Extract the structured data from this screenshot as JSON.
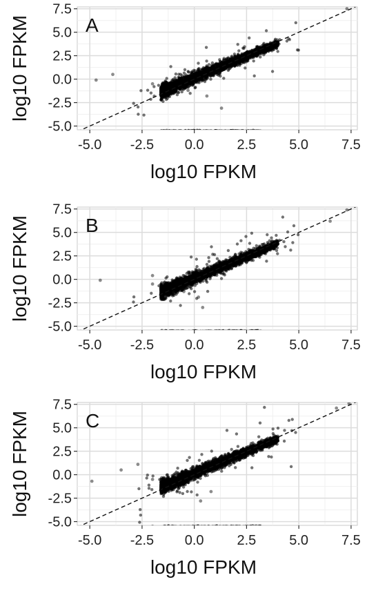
{
  "chart_data": [
    {
      "type": "scatter",
      "panel_label": "A",
      "xlabel": "log10 FPKM",
      "ylabel": "log10 FPKM",
      "xlim": [
        -5.6,
        7.8
      ],
      "ylim": [
        -5.4,
        7.7
      ],
      "x_ticks": [
        -5.0,
        -2.5,
        0.0,
        2.5,
        5.0,
        7.5
      ],
      "y_ticks": [
        -5.0,
        -2.5,
        0.0,
        2.5,
        5.0,
        7.5
      ],
      "x_tick_labels": [
        "-5.0",
        "-2.5",
        "0.0",
        "2.5",
        "5.0",
        "7.5"
      ],
      "y_tick_labels": [
        "-5.0",
        "-2.5",
        "0.0",
        "2.5",
        "5.0",
        "7.5"
      ],
      "grid": true,
      "reference_line": {
        "style": "dashed",
        "slope": 1,
        "intercept": 0
      },
      "series": [
        {
          "points": [
            [
              -2.0,
              -0.5
            ],
            [
              -1.5,
              -0.6
            ],
            [
              -1.0,
              -0.5
            ],
            [
              -0.5,
              -0.3
            ],
            [
              0.0,
              0.0
            ],
            [
              0.5,
              0.3
            ],
            [
              1.0,
              0.8
            ],
            [
              1.5,
              1.2
            ],
            [
              2.0,
              1.7
            ],
            [
              2.5,
              2.3
            ],
            [
              3.0,
              2.8
            ],
            [
              3.5,
              3.3
            ],
            [
              4.0,
              3.8
            ],
            [
              4.5,
              4.3
            ],
            [
              7.3,
              7.5
            ],
            [
              -4.7,
              -0.1
            ],
            [
              -3.9,
              0.5
            ],
            [
              1.3,
              -3.1
            ],
            [
              0.6,
              -1.8
            ],
            [
              -0.3,
              -1.2
            ],
            [
              0.0,
              -5.5
            ],
            [
              1.0,
              -5.5
            ],
            [
              2.0,
              -5.5
            ],
            [
              3.0,
              -5.5
            ],
            [
              -1.2,
              -5.5
            ]
          ]
        }
      ]
    },
    {
      "type": "scatter",
      "panel_label": "B",
      "xlabel": "log10 FPKM",
      "ylabel": "log10 FPKM",
      "xlim": [
        -5.6,
        7.8
      ],
      "ylim": [
        -5.4,
        7.7
      ],
      "x_ticks": [
        -5.0,
        -2.5,
        0.0,
        2.5,
        5.0,
        7.5
      ],
      "y_ticks": [
        -5.0,
        -2.5,
        0.0,
        2.5,
        5.0,
        7.5
      ],
      "x_tick_labels": [
        "-5.0",
        "-2.5",
        "0.0",
        "2.5",
        "5.0",
        "7.5"
      ],
      "y_tick_labels": [
        "-5.0",
        "-2.5",
        "0.0",
        "2.5",
        "5.0",
        "7.5"
      ],
      "grid": true,
      "reference_line": {
        "style": "dashed",
        "slope": 1,
        "intercept": 0
      },
      "series": [
        {
          "points": [
            [
              -2.0,
              -0.5
            ],
            [
              -1.5,
              -0.6
            ],
            [
              -1.0,
              -0.5
            ],
            [
              -0.5,
              -0.2
            ],
            [
              0.0,
              0.0
            ],
            [
              0.5,
              0.4
            ],
            [
              1.0,
              0.8
            ],
            [
              1.5,
              1.2
            ],
            [
              2.0,
              1.8
            ],
            [
              2.5,
              2.3
            ],
            [
              3.0,
              2.9
            ],
            [
              3.5,
              3.4
            ],
            [
              4.0,
              3.8
            ],
            [
              6.5,
              6.2
            ],
            [
              7.3,
              7.4
            ],
            [
              -4.5,
              -0.1
            ],
            [
              -2.0,
              0.4
            ],
            [
              0.4,
              -3.0
            ],
            [
              0.2,
              -1.9
            ],
            [
              -0.5,
              -1.3
            ],
            [
              -1.0,
              -5.5
            ],
            [
              0.0,
              -5.5
            ],
            [
              1.0,
              -5.5
            ],
            [
              2.0,
              -5.5
            ],
            [
              3.0,
              -5.5
            ]
          ]
        }
      ]
    },
    {
      "type": "scatter",
      "panel_label": "C",
      "xlabel": "log10 FPKM",
      "ylabel": "log10 FPKM",
      "xlim": [
        -5.6,
        7.8
      ],
      "ylim": [
        -5.4,
        7.7
      ],
      "x_ticks": [
        -5.0,
        -2.5,
        0.0,
        2.5,
        5.0,
        7.5
      ],
      "y_ticks": [
        -5.0,
        -2.5,
        0.0,
        2.5,
        5.0,
        7.5
      ],
      "x_tick_labels": [
        "-5.0",
        "-2.5",
        "0.0",
        "2.5",
        "5.0",
        "7.5"
      ],
      "y_tick_labels": [
        "-5.0",
        "-2.5",
        "0.0",
        "2.5",
        "5.0",
        "7.5"
      ],
      "grid": true,
      "reference_line": {
        "style": "dashed",
        "slope": 1,
        "intercept": 0
      },
      "series": [
        {
          "points": [
            [
              -2.0,
              -0.5
            ],
            [
              -1.5,
              -0.5
            ],
            [
              -1.0,
              -0.3
            ],
            [
              -0.5,
              -0.2
            ],
            [
              0.0,
              0.0
            ],
            [
              0.5,
              0.4
            ],
            [
              1.0,
              0.8
            ],
            [
              1.5,
              1.3
            ],
            [
              2.0,
              1.8
            ],
            [
              2.5,
              2.4
            ],
            [
              3.0,
              2.9
            ],
            [
              3.5,
              3.2
            ],
            [
              4.0,
              3.6
            ],
            [
              6.8,
              7.1
            ],
            [
              7.4,
              7.6
            ],
            [
              -4.9,
              -0.7
            ],
            [
              -2.7,
              1.1
            ],
            [
              -3.5,
              0.5
            ],
            [
              0.3,
              -2.8
            ],
            [
              0.8,
              -1.8
            ],
            [
              -1.0,
              -5.5
            ],
            [
              0.0,
              -5.5
            ],
            [
              1.0,
              -5.5
            ],
            [
              2.0,
              -5.5
            ],
            [
              -2.0,
              -5.5
            ]
          ]
        }
      ]
    }
  ]
}
